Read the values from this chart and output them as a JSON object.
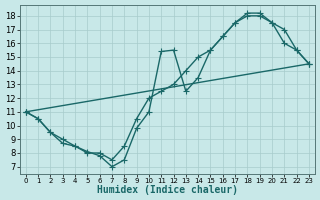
{
  "background_color": "#c8e8e8",
  "grid_color": "#a8cccc",
  "line_color": "#1a6868",
  "xlabel": "Humidex (Indice chaleur)",
  "xlim": [
    -0.5,
    23.5
  ],
  "ylim": [
    6.5,
    18.8
  ],
  "yticks": [
    7,
    8,
    9,
    10,
    11,
    12,
    13,
    14,
    15,
    16,
    17,
    18
  ],
  "xticks": [
    0,
    1,
    2,
    3,
    4,
    5,
    6,
    7,
    8,
    9,
    10,
    11,
    12,
    13,
    14,
    15,
    16,
    17,
    18,
    19,
    20,
    21,
    22,
    23
  ],
  "curve1_x": [
    0,
    1,
    2,
    3,
    4,
    5,
    6,
    7,
    8,
    9,
    10,
    11,
    12,
    13,
    14,
    15,
    16,
    17,
    18,
    19,
    20,
    21,
    22,
    23
  ],
  "curve1_y": [
    11.0,
    10.5,
    9.5,
    9.0,
    8.5,
    8.0,
    8.0,
    7.5,
    8.5,
    10.5,
    12.0,
    12.5,
    13.0,
    14.0,
    15.0,
    15.5,
    16.5,
    17.5,
    18.2,
    18.2,
    17.5,
    16.0,
    15.5,
    14.5
  ],
  "curve2_x": [
    0,
    1,
    2,
    3,
    4,
    5,
    6,
    7,
    8,
    9,
    10,
    11,
    12,
    13,
    14,
    15,
    16,
    17,
    18,
    19,
    20,
    21,
    22,
    23
  ],
  "curve2_y": [
    11.0,
    10.5,
    9.5,
    8.7,
    8.5,
    8.1,
    7.8,
    7.0,
    7.5,
    9.8,
    11.0,
    15.4,
    15.5,
    12.5,
    13.5,
    15.5,
    16.5,
    17.5,
    18.0,
    18.0,
    17.5,
    17.0,
    15.5,
    14.5
  ],
  "line3_x": [
    0,
    23
  ],
  "line3_y": [
    11.0,
    14.5
  ],
  "lw": 1.0,
  "ms": 2.5
}
